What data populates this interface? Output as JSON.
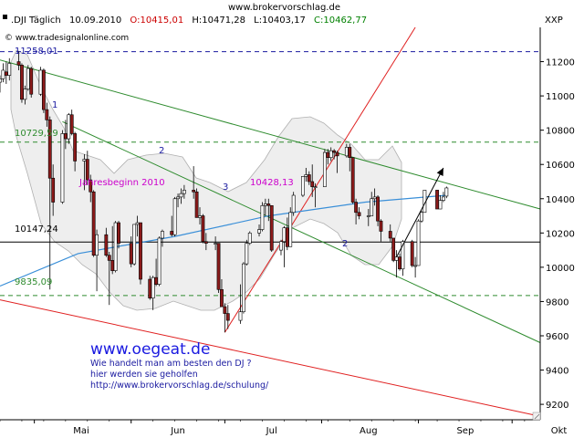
{
  "header": {
    "site_url": "www.brokervorschlag.de",
    "symbol": ".DJI Täglich",
    "date": "10.09.2010",
    "open": "O:10415,01",
    "high": "H:10471,28",
    "low": "L:10403,17",
    "close": "C:10462,77",
    "exchange": "XXP",
    "copyright": "© www.tradesignalonline.com"
  },
  "colors": {
    "up_candle": "#ffffff",
    "down_candle": "#8b1a1a",
    "green_channel": "#2e8b2e",
    "red_trend": "#e02020",
    "blue_level": "#1a1aa0",
    "moving_average": "#3a8fd8",
    "annotation_magenta": "#cc00cc",
    "watermark_blue": "#1a1ae0",
    "arrow_black": "#000000"
  },
  "labels": {
    "level_top": "11258,01",
    "level_upper": "10729,59",
    "level_mid": "10147,24",
    "level_low": "9835,09",
    "jahresbeginn": "Jahresbeginn 2010",
    "jahresbeginn_value": "10428,13",
    "wave_1": "1",
    "wave_2": "2",
    "wave_3": "3",
    "wave_4": "2"
  },
  "promo": {
    "title": "www.oegeat.de",
    "line1": "Wie handelt man am besten  den DJ ?",
    "line2": "hier werden sie geholfen",
    "line3": "http://www.brokervorschlag.de/schulung/"
  },
  "chart_data": {
    "type": "candlestick",
    "x_axis": {
      "labels": [
        "Mai",
        "Jun",
        "Jul",
        "Aug",
        "Sep",
        "Okt"
      ],
      "label_dates": [
        "2010-05-01",
        "2010-06-01",
        "2010-07-01",
        "2010-08-01",
        "2010-09-01",
        "2010-10-01"
      ],
      "range": [
        "2010-04-20",
        "2010-10-10"
      ]
    },
    "y_axis": {
      "ticks": [
        9200,
        9400,
        9600,
        9800,
        10000,
        10200,
        10400,
        10600,
        10800,
        11000,
        11200
      ],
      "range": [
        9110,
        11400
      ]
    },
    "candles": [
      {
        "date": "2010-04-20",
        "o": 11080,
        "h": 11120,
        "l": 11020,
        "c": 11100
      },
      {
        "date": "2010-04-21",
        "o": 11100,
        "h": 11190,
        "l": 11080,
        "c": 11150
      },
      {
        "date": "2010-04-22",
        "o": 11140,
        "h": 11200,
        "l": 11070,
        "c": 11120
      },
      {
        "date": "2010-04-23",
        "o": 11120,
        "h": 11220,
        "l": 11090,
        "c": 11190
      },
      {
        "date": "2010-04-26",
        "o": 11200,
        "h": 11260,
        "l": 11150,
        "c": 11180
      },
      {
        "date": "2010-04-27",
        "o": 11180,
        "h": 11190,
        "l": 10960,
        "c": 10980
      },
      {
        "date": "2010-04-28",
        "o": 10980,
        "h": 11060,
        "l": 10950,
        "c": 11040
      },
      {
        "date": "2010-04-29",
        "o": 11040,
        "h": 11180,
        "l": 11030,
        "c": 11160
      },
      {
        "date": "2010-04-30",
        "o": 11160,
        "h": 11170,
        "l": 10990,
        "c": 11010
      },
      {
        "date": "2010-05-03",
        "o": 11010,
        "h": 11170,
        "l": 11000,
        "c": 11150
      },
      {
        "date": "2010-05-04",
        "o": 11150,
        "h": 11160,
        "l": 10900,
        "c": 10920
      },
      {
        "date": "2010-05-05",
        "o": 10920,
        "h": 10960,
        "l": 10820,
        "c": 10860
      },
      {
        "date": "2010-05-06",
        "o": 10860,
        "h": 10880,
        "l": 9870,
        "c": 10520
      },
      {
        "date": "2010-05-07",
        "o": 10520,
        "h": 10600,
        "l": 10300,
        "c": 10380
      },
      {
        "date": "2010-05-10",
        "o": 10380,
        "h": 10800,
        "l": 10370,
        "c": 10780
      },
      {
        "date": "2010-05-11",
        "o": 10780,
        "h": 10860,
        "l": 10690,
        "c": 10750
      },
      {
        "date": "2010-05-12",
        "o": 10750,
        "h": 10900,
        "l": 10720,
        "c": 10890
      },
      {
        "date": "2010-05-13",
        "o": 10890,
        "h": 10920,
        "l": 10770,
        "c": 10780
      },
      {
        "date": "2010-05-14",
        "o": 10780,
        "h": 10790,
        "l": 10560,
        "c": 10620
      },
      {
        "date": "2010-05-17",
        "o": 10620,
        "h": 10660,
        "l": 10450,
        "c": 10630
      },
      {
        "date": "2010-05-18",
        "o": 10630,
        "h": 10680,
        "l": 10480,
        "c": 10510
      },
      {
        "date": "2010-05-19",
        "o": 10510,
        "h": 10540,
        "l": 10380,
        "c": 10440
      },
      {
        "date": "2010-05-20",
        "o": 10440,
        "h": 10450,
        "l": 10060,
        "c": 10070
      },
      {
        "date": "2010-05-21",
        "o": 10070,
        "h": 10220,
        "l": 9860,
        "c": 10190
      },
      {
        "date": "2010-05-24",
        "o": 10190,
        "h": 10230,
        "l": 10060,
        "c": 10070
      },
      {
        "date": "2010-05-25",
        "o": 10070,
        "h": 10090,
        "l": 9780,
        "c": 10040
      },
      {
        "date": "2010-05-26",
        "o": 10040,
        "h": 10240,
        "l": 9960,
        "c": 9980
      },
      {
        "date": "2010-05-27",
        "o": 9980,
        "h": 10270,
        "l": 9970,
        "c": 10260
      },
      {
        "date": "2010-05-28",
        "o": 10260,
        "h": 10270,
        "l": 10110,
        "c": 10140
      },
      {
        "date": "2010-06-01",
        "o": 10140,
        "h": 10180,
        "l": 10000,
        "c": 10020
      },
      {
        "date": "2010-06-02",
        "o": 10020,
        "h": 10250,
        "l": 10010,
        "c": 10250
      },
      {
        "date": "2010-06-03",
        "o": 10250,
        "h": 10300,
        "l": 10180,
        "c": 10260
      },
      {
        "date": "2010-06-04",
        "o": 10260,
        "h": 10260,
        "l": 9900,
        "c": 9930
      },
      {
        "date": "2010-06-07",
        "o": 9930,
        "h": 9950,
        "l": 9810,
        "c": 9820
      },
      {
        "date": "2010-06-08",
        "o": 9820,
        "h": 9950,
        "l": 9750,
        "c": 9940
      },
      {
        "date": "2010-06-09",
        "o": 9940,
        "h": 10050,
        "l": 9890,
        "c": 9900
      },
      {
        "date": "2010-06-10",
        "o": 9900,
        "h": 10180,
        "l": 9890,
        "c": 10170
      },
      {
        "date": "2010-06-11",
        "o": 10170,
        "h": 10220,
        "l": 10120,
        "c": 10210
      },
      {
        "date": "2010-06-14",
        "o": 10210,
        "h": 10300,
        "l": 10180,
        "c": 10190
      },
      {
        "date": "2010-06-15",
        "o": 10190,
        "h": 10410,
        "l": 10180,
        "c": 10400
      },
      {
        "date": "2010-06-16",
        "o": 10400,
        "h": 10430,
        "l": 10350,
        "c": 10410
      },
      {
        "date": "2010-06-17",
        "o": 10410,
        "h": 10460,
        "l": 10370,
        "c": 10430
      },
      {
        "date": "2010-06-18",
        "o": 10430,
        "h": 10480,
        "l": 10400,
        "c": 10450
      },
      {
        "date": "2010-06-21",
        "o": 10450,
        "h": 10590,
        "l": 10400,
        "c": 10440
      },
      {
        "date": "2010-06-22",
        "o": 10440,
        "h": 10460,
        "l": 10290,
        "c": 10290
      },
      {
        "date": "2010-06-23",
        "o": 10290,
        "h": 10350,
        "l": 10250,
        "c": 10300
      },
      {
        "date": "2010-06-24",
        "o": 10300,
        "h": 10310,
        "l": 10140,
        "c": 10150
      },
      {
        "date": "2010-06-25",
        "o": 10150,
        "h": 10200,
        "l": 10100,
        "c": 10140
      },
      {
        "date": "2010-06-28",
        "o": 10140,
        "h": 10180,
        "l": 10100,
        "c": 10140
      },
      {
        "date": "2010-06-29",
        "o": 10140,
        "h": 10140,
        "l": 9850,
        "c": 9870
      },
      {
        "date": "2010-06-30",
        "o": 9870,
        "h": 9930,
        "l": 9770,
        "c": 9770
      },
      {
        "date": "2010-07-01",
        "o": 9770,
        "h": 9790,
        "l": 9620,
        "c": 9730
      },
      {
        "date": "2010-07-02",
        "o": 9730,
        "h": 9780,
        "l": 9640,
        "c": 9690
      },
      {
        "date": "2010-07-06",
        "o": 9690,
        "h": 9900,
        "l": 9670,
        "c": 9740
      },
      {
        "date": "2010-07-07",
        "o": 9740,
        "h": 10030,
        "l": 9730,
        "c": 10020
      },
      {
        "date": "2010-07-08",
        "o": 10020,
        "h": 10160,
        "l": 10010,
        "c": 10140
      },
      {
        "date": "2010-07-09",
        "o": 10140,
        "h": 10210,
        "l": 10130,
        "c": 10200
      },
      {
        "date": "2010-07-12",
        "o": 10200,
        "h": 10250,
        "l": 10180,
        "c": 10220
      },
      {
        "date": "2010-07-13",
        "o": 10220,
        "h": 10380,
        "l": 10210,
        "c": 10360
      },
      {
        "date": "2010-07-14",
        "o": 10360,
        "h": 10400,
        "l": 10300,
        "c": 10370
      },
      {
        "date": "2010-07-15",
        "o": 10370,
        "h": 10400,
        "l": 10270,
        "c": 10360
      },
      {
        "date": "2010-07-16",
        "o": 10360,
        "h": 10360,
        "l": 10090,
        "c": 10100
      },
      {
        "date": "2010-07-19",
        "o": 10100,
        "h": 10160,
        "l": 10070,
        "c": 10150
      },
      {
        "date": "2010-07-20",
        "o": 10150,
        "h": 10240,
        "l": 10000,
        "c": 10230
      },
      {
        "date": "2010-07-21",
        "o": 10230,
        "h": 10290,
        "l": 10100,
        "c": 10120
      },
      {
        "date": "2010-07-22",
        "o": 10120,
        "h": 10350,
        "l": 10120,
        "c": 10320
      },
      {
        "date": "2010-07-23",
        "o": 10320,
        "h": 10440,
        "l": 10300,
        "c": 10420
      },
      {
        "date": "2010-07-26",
        "o": 10420,
        "h": 10530,
        "l": 10410,
        "c": 10530
      },
      {
        "date": "2010-07-27",
        "o": 10530,
        "h": 10580,
        "l": 10500,
        "c": 10540
      },
      {
        "date": "2010-07-28",
        "o": 10540,
        "h": 10560,
        "l": 10480,
        "c": 10500
      },
      {
        "date": "2010-07-29",
        "o": 10500,
        "h": 10600,
        "l": 10410,
        "c": 10470
      },
      {
        "date": "2010-07-30",
        "o": 10470,
        "h": 10490,
        "l": 10350,
        "c": 10470
      },
      {
        "date": "2010-08-02",
        "o": 10470,
        "h": 10690,
        "l": 10470,
        "c": 10670
      },
      {
        "date": "2010-08-03",
        "o": 10670,
        "h": 10690,
        "l": 10600,
        "c": 10640
      },
      {
        "date": "2010-08-04",
        "o": 10640,
        "h": 10700,
        "l": 10620,
        "c": 10680
      },
      {
        "date": "2010-08-05",
        "o": 10680,
        "h": 10690,
        "l": 10630,
        "c": 10670
      },
      {
        "date": "2010-08-06",
        "o": 10670,
        "h": 10680,
        "l": 10550,
        "c": 10650
      },
      {
        "date": "2010-08-09",
        "o": 10650,
        "h": 10720,
        "l": 10640,
        "c": 10700
      },
      {
        "date": "2010-08-10",
        "o": 10700,
        "h": 10720,
        "l": 10560,
        "c": 10640
      },
      {
        "date": "2010-08-11",
        "o": 10640,
        "h": 10640,
        "l": 10370,
        "c": 10380
      },
      {
        "date": "2010-08-12",
        "o": 10380,
        "h": 10400,
        "l": 10250,
        "c": 10320
      },
      {
        "date": "2010-08-13",
        "o": 10320,
        "h": 10350,
        "l": 10280,
        "c": 10300
      },
      {
        "date": "2010-08-16",
        "o": 10300,
        "h": 10340,
        "l": 10240,
        "c": 10300
      },
      {
        "date": "2010-08-17",
        "o": 10300,
        "h": 10440,
        "l": 10300,
        "c": 10400
      },
      {
        "date": "2010-08-18",
        "o": 10400,
        "h": 10460,
        "l": 10360,
        "c": 10410
      },
      {
        "date": "2010-08-19",
        "o": 10410,
        "h": 10420,
        "l": 10240,
        "c": 10270
      },
      {
        "date": "2010-08-20",
        "o": 10270,
        "h": 10280,
        "l": 10150,
        "c": 10210
      },
      {
        "date": "2010-08-23",
        "o": 10210,
        "h": 10250,
        "l": 10150,
        "c": 10170
      },
      {
        "date": "2010-08-24",
        "o": 10170,
        "h": 10170,
        "l": 10030,
        "c": 10040
      },
      {
        "date": "2010-08-25",
        "o": 10040,
        "h": 10100,
        "l": 9940,
        "c": 10060
      },
      {
        "date": "2010-08-26",
        "o": 10060,
        "h": 10080,
        "l": 9980,
        "c": 9990
      },
      {
        "date": "2010-08-27",
        "o": 9990,
        "h": 10160,
        "l": 9950,
        "c": 10150
      },
      {
        "date": "2010-08-30",
        "o": 10150,
        "h": 10160,
        "l": 10000,
        "c": 10010
      },
      {
        "date": "2010-08-31",
        "o": 10010,
        "h": 10060,
        "l": 9940,
        "c": 10010
      },
      {
        "date": "2010-09-01",
        "o": 10010,
        "h": 10280,
        "l": 10010,
        "c": 10270
      },
      {
        "date": "2010-09-02",
        "o": 10270,
        "h": 10330,
        "l": 10260,
        "c": 10320
      },
      {
        "date": "2010-09-03",
        "o": 10320,
        "h": 10450,
        "l": 10320,
        "c": 10450
      },
      {
        "date": "2010-09-07",
        "o": 10450,
        "h": 10450,
        "l": 10340,
        "c": 10340
      },
      {
        "date": "2010-09-08",
        "o": 10340,
        "h": 10420,
        "l": 10340,
        "c": 10390
      },
      {
        "date": "2010-09-09",
        "o": 10390,
        "h": 10440,
        "l": 10380,
        "c": 10410
      },
      {
        "date": "2010-09-10",
        "o": 10415,
        "h": 10471,
        "l": 10403,
        "c": 10463
      }
    ],
    "horizontal_levels": [
      {
        "value": 11258,
        "style": "dashed",
        "color": "#1a1aa0"
      },
      {
        "value": 10730,
        "style": "dashed",
        "color": "#2e8b2e"
      },
      {
        "value": 10147,
        "style": "solid",
        "color": "#000000"
      },
      {
        "value": 9835,
        "style": "dashed",
        "color": "#2e8b2e"
      }
    ],
    "trend_lines": [
      {
        "from": {
          "date": "2010-04-20",
          "y": 11210
        },
        "to": {
          "date": "2010-10-10",
          "y": 10340
        },
        "color": "#2e8b2e"
      },
      {
        "from": {
          "date": "2010-05-10",
          "y": 10850
        },
        "to": {
          "date": "2010-10-10",
          "y": 9560
        },
        "color": "#2e8b2e"
      },
      {
        "from": {
          "date": "2010-04-20",
          "y": 9810
        },
        "to": {
          "date": "2010-10-10",
          "y": 9130
        },
        "color": "#e02020"
      },
      {
        "from": {
          "date": "2010-07-01",
          "y": 9620
        },
        "to": {
          "date": "2010-08-31",
          "y": 11400
        },
        "color": "#e02020"
      }
    ],
    "moving_average": [
      {
        "date": "2010-04-20",
        "y": 9890
      },
      {
        "date": "2010-05-15",
        "y": 10080
      },
      {
        "date": "2010-06-15",
        "y": 10180
      },
      {
        "date": "2010-07-15",
        "y": 10300
      },
      {
        "date": "2010-08-15",
        "y": 10380
      },
      {
        "date": "2010-09-10",
        "y": 10420
      }
    ],
    "arrow": {
      "from": {
        "date": "2010-08-25",
        "y": 10060
      },
      "to": {
        "date": "2010-09-09",
        "y": 10580
      }
    }
  }
}
